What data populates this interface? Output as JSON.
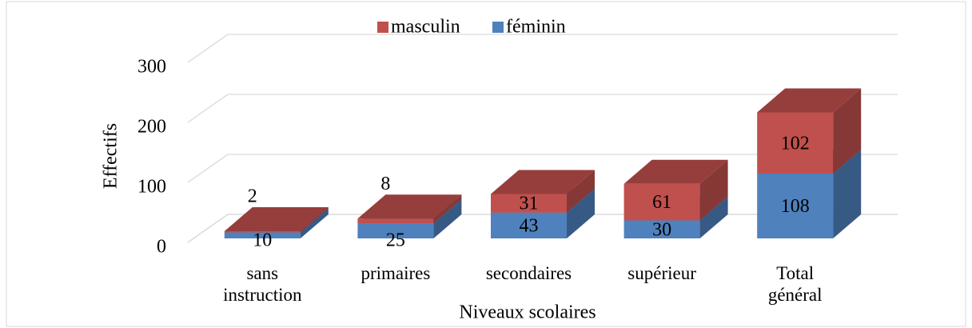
{
  "chart_data": {
    "type": "bar3d_stacked",
    "categories": [
      "sans instruction",
      "primaires",
      "secondaires",
      "supérieur",
      "Total général"
    ],
    "series": [
      {
        "name": "masculin",
        "color": "#c0504d",
        "values": [
          2,
          8,
          31,
          61,
          102
        ]
      },
      {
        "name": "féminin",
        "color": "#4f81bd",
        "values": [
          10,
          25,
          43,
          30,
          108
        ]
      }
    ],
    "ylim": [
      0,
      300
    ],
    "yticks": [
      0,
      100,
      200,
      300
    ],
    "grid": true,
    "legend": "top",
    "xlabel": "Niveaux scolaires",
    "ylabel": "Effectifs"
  }
}
